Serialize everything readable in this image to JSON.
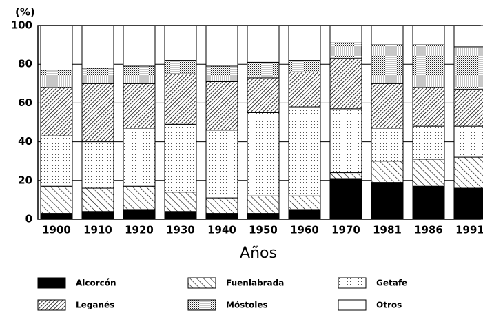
{
  "chart_data": {
    "type": "stacked_bar",
    "y_unit_label": "(%)",
    "x_label": "Años",
    "categories": [
      "1900",
      "1910",
      "1920",
      "1930",
      "1940",
      "1950",
      "1960",
      "1970",
      "1981",
      "1986",
      "1991"
    ],
    "series": [
      {
        "name": "Alcorcón",
        "color": "#000000",
        "pattern": "solid",
        "values": [
          3,
          4,
          5,
          4,
          3,
          3,
          5,
          21,
          19,
          17,
          16
        ]
      },
      {
        "name": "Fuenlabrada",
        "color": "#000000",
        "pattern": "hatch",
        "values": [
          14,
          12,
          12,
          10,
          8,
          9,
          7,
          3,
          11,
          14,
          16
        ]
      },
      {
        "name": "Getafe",
        "color": "#000000",
        "pattern": "dots-sparse",
        "values": [
          26,
          24,
          30,
          35,
          35,
          43,
          46,
          33,
          17,
          17,
          16
        ]
      },
      {
        "name": "Leganés",
        "color": "#000000",
        "pattern": "hatch-dense",
        "values": [
          25,
          30,
          23,
          26,
          25,
          18,
          18,
          26,
          23,
          20,
          19
        ]
      },
      {
        "name": "Móstoles",
        "color": "#000000",
        "pattern": "dots-dense",
        "values": [
          9,
          8,
          9,
          7,
          8,
          8,
          6,
          8,
          20,
          22,
          22
        ]
      },
      {
        "name": "Otros",
        "color": "#ffffff",
        "pattern": "solid",
        "values": [
          23,
          22,
          21,
          18,
          21,
          19,
          18,
          9,
          10,
          10,
          11
        ]
      }
    ],
    "ylim": [
      0,
      100
    ],
    "yticks": [
      0,
      20,
      40,
      60,
      80,
      100
    ],
    "grid": true
  }
}
